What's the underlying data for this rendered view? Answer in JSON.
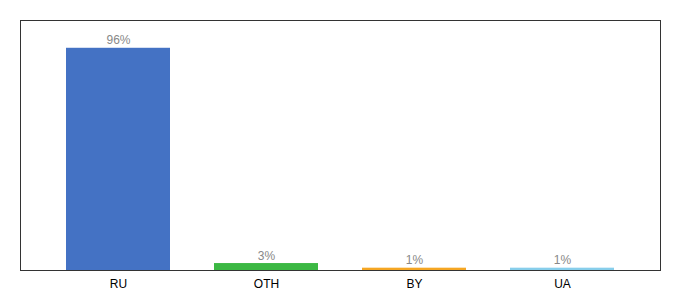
{
  "chart_data": {
    "type": "bar",
    "categories": [
      "RU",
      "OTH",
      "BY",
      "UA"
    ],
    "values": [
      96,
      3,
      1,
      1
    ],
    "value_labels": [
      "96%",
      "3%",
      "1%",
      "1%"
    ],
    "data_labels": true,
    "colors": [
      "#4472c4",
      "#3cb843",
      "#f5a623",
      "#87ceeb"
    ],
    "ylim": [
      0,
      108
    ],
    "tick_labels": "x"
  }
}
